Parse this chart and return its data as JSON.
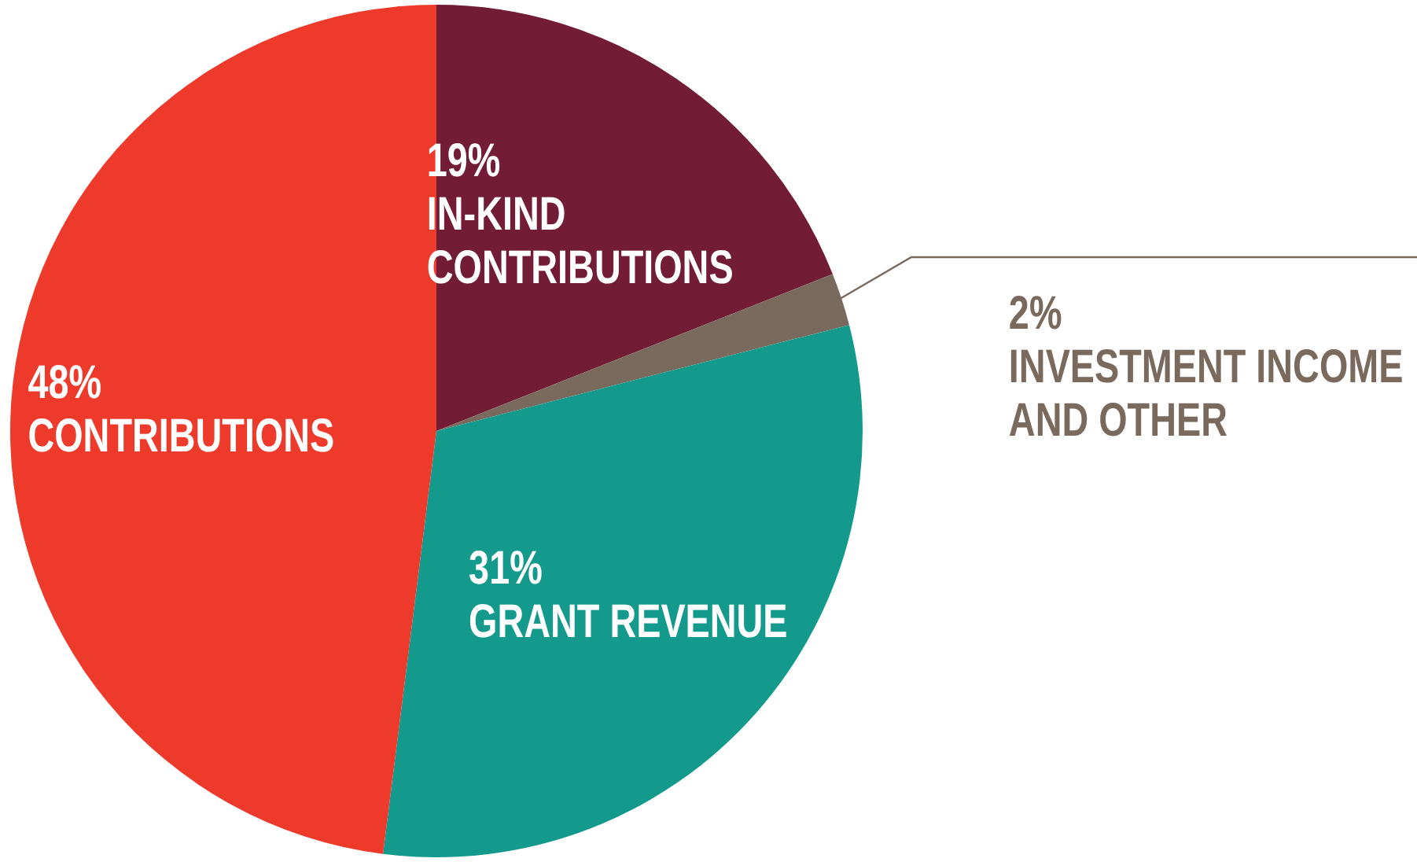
{
  "chart_data": {
    "type": "pie",
    "categories": [
      "IN-KIND CONTRIBUTIONS",
      "INVESTMENT INCOME AND OTHER",
      "GRANT REVENUE",
      "CONTRIBUTIONS"
    ],
    "values": [
      19,
      2,
      31,
      48
    ],
    "colors": [
      "#721c35",
      "#7a6a5e",
      "#139a8c",
      "#ee3a2b"
    ],
    "value_labels": [
      "19%",
      "2%",
      "31%",
      "48%"
    ],
    "legend": false
  }
}
